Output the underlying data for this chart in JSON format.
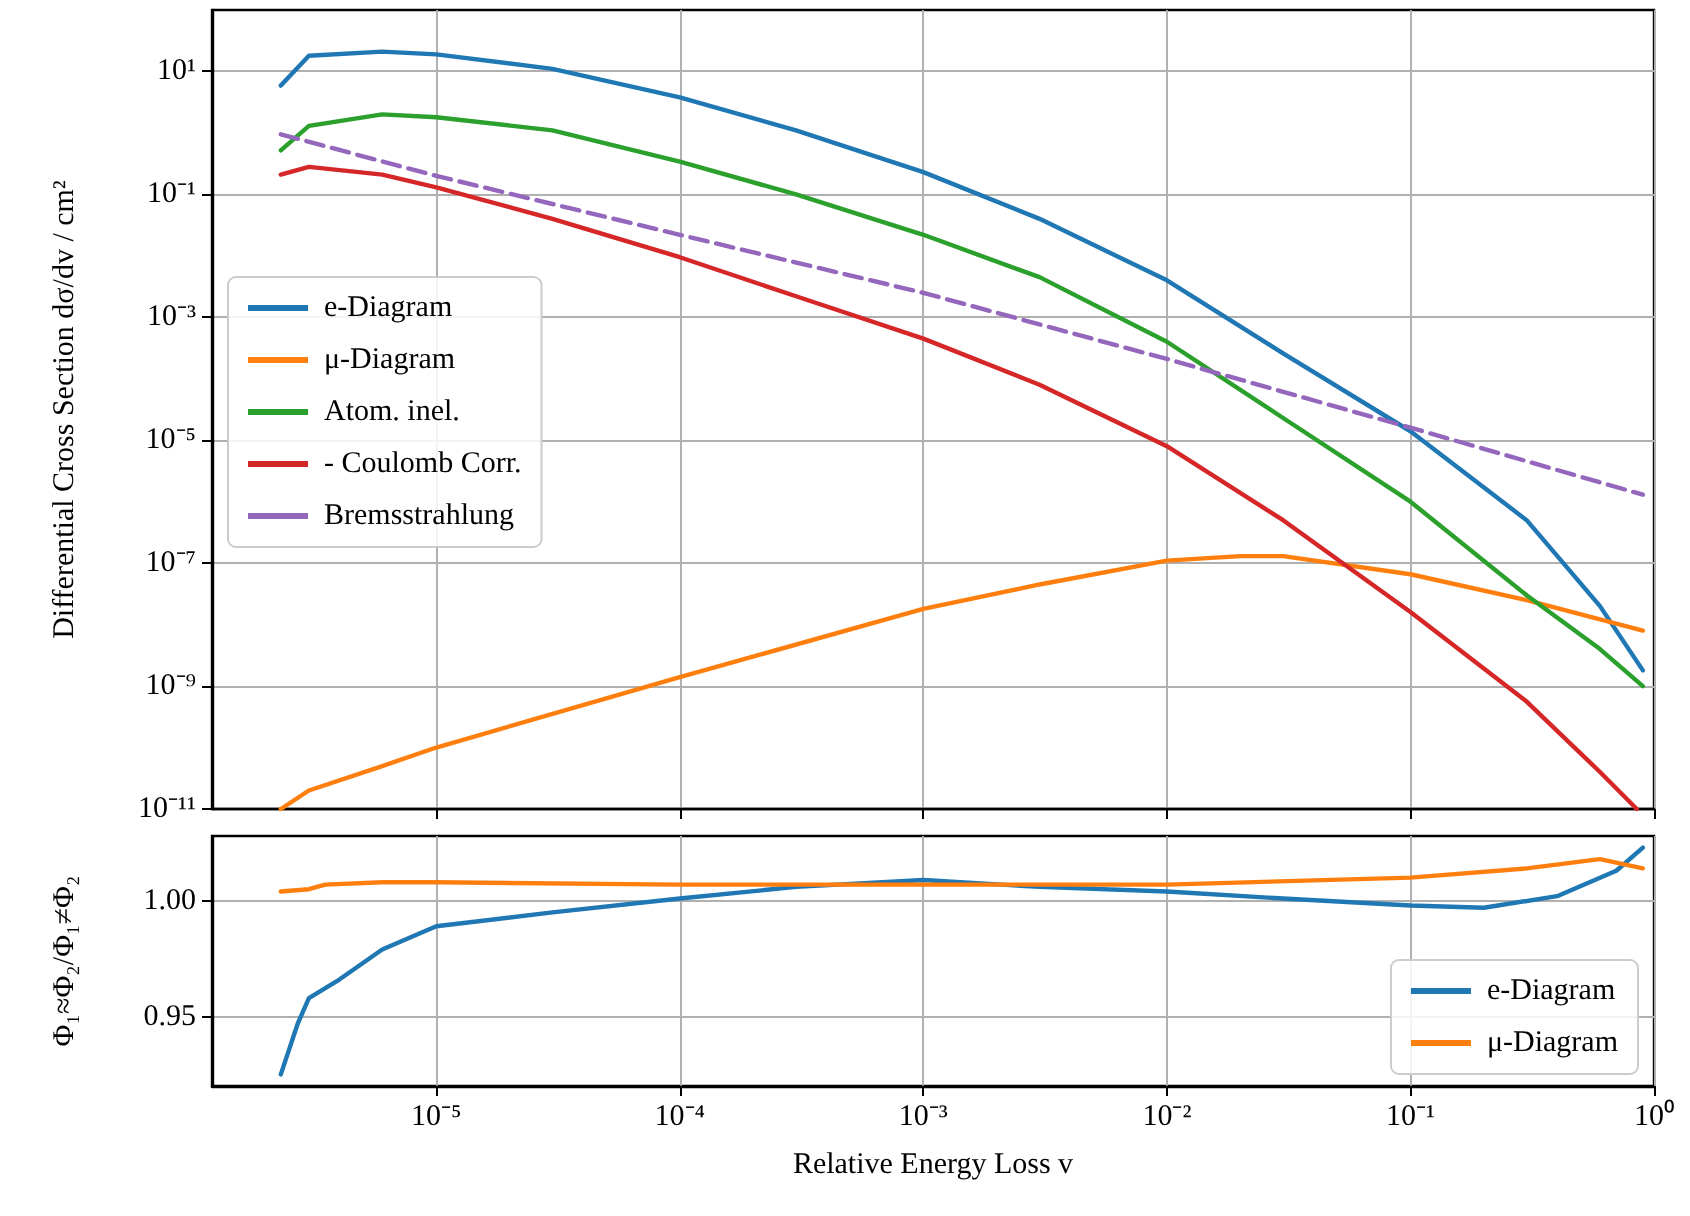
{
  "chart_data": [
    {
      "type": "line",
      "ylabel": "Differential Cross Section dσ/dv / cm²",
      "log": "xy",
      "grid": true,
      "legend": "left",
      "marker": "none",
      "tick_labels": "y",
      "xlim": [
        1.2e-06,
        1
      ],
      "ylim": [
        1e-11,
        100
      ],
      "xticks": [
        {
          "value": 1e-05,
          "label": null
        },
        {
          "value": 0.0001,
          "label": null
        },
        {
          "value": 0.001,
          "label": null
        },
        {
          "value": 0.01,
          "label": null
        },
        {
          "value": 0.1,
          "label": null
        },
        {
          "value": 1,
          "label": null
        }
      ],
      "yticks": [
        {
          "value": 1e-11,
          "label": "10⁻¹¹"
        },
        {
          "value": 1e-09,
          "label": "10⁻⁹"
        },
        {
          "value": 1e-07,
          "label": "10⁻⁷"
        },
        {
          "value": 1e-05,
          "label": "10⁻⁵"
        },
        {
          "value": 0.001,
          "label": "10⁻³"
        },
        {
          "value": 0.1,
          "label": "10⁻¹"
        },
        {
          "value": 10,
          "label": "10¹"
        }
      ],
      "series": [
        {
          "name": "e-Diagram",
          "color": "#1f77b4",
          "x": [
            2.3e-06,
            3e-06,
            6e-06,
            1e-05,
            3e-05,
            0.0001,
            0.0003,
            0.001,
            0.003,
            0.01,
            0.03,
            0.1,
            0.3,
            0.6,
            0.9
          ],
          "values": [
            5.9,
            18,
            21,
            19,
            11,
            3.8,
            1.1,
            0.23,
            0.04,
            0.004,
            0.00026,
            1.4e-05,
            5e-07,
            2e-08,
            1.8e-09
          ]
        },
        {
          "name": "μ-Diagram",
          "color": "#ff7f0e",
          "x": [
            2.3e-06,
            3e-06,
            6e-06,
            1e-05,
            0.0001,
            0.001,
            0.003,
            0.01,
            0.02,
            0.03,
            0.1,
            0.3,
            0.9
          ],
          "values": [
            1e-11,
            2e-11,
            5e-11,
            1e-10,
            1.4e-09,
            1.8e-08,
            4.5e-08,
            1.1e-07,
            1.3e-07,
            1.3e-07,
            6.6e-08,
            2.5e-08,
            8e-09
          ]
        },
        {
          "name": "Atom. inel.",
          "color": "#2ca02c",
          "x": [
            2.3e-06,
            3e-06,
            6e-06,
            1e-05,
            3e-05,
            0.0001,
            0.0003,
            0.001,
            0.003,
            0.01,
            0.03,
            0.1,
            0.3,
            0.6,
            0.9
          ],
          "values": [
            0.52,
            1.3,
            2.0,
            1.8,
            1.1,
            0.34,
            0.1,
            0.022,
            0.0045,
            0.0004,
            2.3e-05,
            1e-06,
            3e-08,
            4e-09,
            1e-09
          ]
        },
        {
          "name": "- Coulomb Corr.",
          "color": "#d62728",
          "x": [
            2.3e-06,
            3e-06,
            6e-06,
            1e-05,
            3e-05,
            0.0001,
            0.0003,
            0.001,
            0.003,
            0.01,
            0.03,
            0.1,
            0.3,
            0.6,
            0.85
          ],
          "values": [
            0.21,
            0.28,
            0.21,
            0.13,
            0.04,
            0.0095,
            0.0022,
            0.00045,
            8e-05,
            8e-06,
            5e-07,
            1.6e-08,
            5.6e-10,
            4e-11,
            1e-11
          ]
        },
        {
          "name": "Bremsstrahlung",
          "color": "#9467bd",
          "line_style": "dashed",
          "x": [
            2.3e-06,
            1e-05,
            0.0001,
            0.001,
            0.01,
            0.1,
            0.9
          ],
          "values": [
            0.95,
            0.2,
            0.022,
            0.0025,
            0.00021,
            1.6e-05,
            1.3e-06
          ]
        }
      ]
    },
    {
      "type": "line",
      "ylabel": "Φ₁≈Φ₂/Φ₁≠Φ₂",
      "xlabel": "Relative Energy Loss v",
      "log": "x",
      "grid": true,
      "legend": "bottom right",
      "marker": "none",
      "xlim": [
        1.2e-06,
        1
      ],
      "ylim": [
        0.92,
        1.028
      ],
      "xticks": [
        {
          "value": 1e-05,
          "label": "10⁻⁵"
        },
        {
          "value": 0.0001,
          "label": "10⁻⁴"
        },
        {
          "value": 0.001,
          "label": "10⁻³"
        },
        {
          "value": 0.01,
          "label": "10⁻²"
        },
        {
          "value": 0.1,
          "label": "10⁻¹"
        },
        {
          "value": 1,
          "label": "10⁰"
        }
      ],
      "yticks": [
        0.95,
        {
          "value": 1,
          "label": "1.00"
        }
      ],
      "series": [
        {
          "name": "e-Diagram",
          "color": "#1f77b4",
          "x": [
            2.3e-06,
            2.7e-06,
            3e-06,
            4e-06,
            6e-06,
            1e-05,
            3e-05,
            0.0001,
            0.0003,
            0.001,
            0.003,
            0.01,
            0.03,
            0.1,
            0.2,
            0.4,
            0.7,
            0.9
          ],
          "values": [
            0.925,
            0.947,
            0.958,
            0.966,
            0.979,
            0.989,
            0.995,
            1.001,
            1.006,
            1.009,
            1.006,
            1.004,
            1.001,
            0.998,
            0.997,
            1.002,
            1.013,
            1.023
          ]
        },
        {
          "name": "μ-Diagram",
          "color": "#ff7f0e",
          "x": [
            2.3e-06,
            3e-06,
            3.5e-06,
            6e-06,
            1e-05,
            0.0001,
            0.001,
            0.01,
            0.1,
            0.3,
            0.6,
            0.9
          ],
          "values": [
            1.004,
            1.005,
            1.007,
            1.008,
            1.008,
            1.007,
            1.007,
            1.007,
            1.01,
            1.014,
            1.018,
            1.014
          ]
        }
      ]
    }
  ]
}
